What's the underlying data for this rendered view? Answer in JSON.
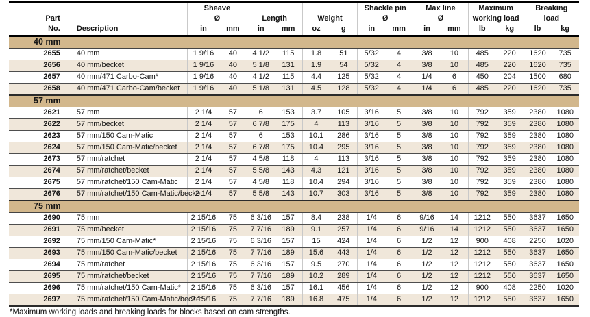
{
  "colors": {
    "section_band": "#d2b78c",
    "row_stripe": "#f0e7da",
    "text": "#161616",
    "rule_dark": "#4e4e4e",
    "rule_light": "#c9c9c9"
  },
  "header": {
    "part_line1": "Part",
    "part_line2": "No.",
    "description": "Description",
    "groups": [
      {
        "line1": "Sheave",
        "line2": "Ø",
        "units": [
          "in",
          "mm"
        ]
      },
      {
        "line1": "",
        "line2": "Length",
        "units": [
          "in",
          "mm"
        ]
      },
      {
        "line1": "",
        "line2": "Weight",
        "units": [
          "oz",
          "g"
        ]
      },
      {
        "line1": "Shackle pin",
        "line2": "Ø",
        "units": [
          "in",
          "mm"
        ]
      },
      {
        "line1": "Max line",
        "line2": "Ø",
        "units": [
          "in",
          "mm"
        ]
      },
      {
        "line1": "Maximum",
        "line2": "working load",
        "units": [
          "lb",
          "kg"
        ]
      },
      {
        "line1": "Breaking",
        "line2": "load",
        "units": [
          "lb",
          "kg"
        ]
      }
    ]
  },
  "sections": [
    {
      "title": "40 mm",
      "rows": [
        {
          "part": "2655",
          "description": "40 mm",
          "values": [
            "1 9/16",
            "40",
            "4 1/2",
            "115",
            "1.8",
            "51",
            "5/32",
            "4",
            "3/8",
            "10",
            "485",
            "220",
            "1620",
            "735"
          ]
        },
        {
          "part": "2656",
          "description": "40 mm/becket",
          "values": [
            "1 9/16",
            "40",
            "5 1/8",
            "131",
            "1.9",
            "54",
            "5/32",
            "4",
            "3/8",
            "10",
            "485",
            "220",
            "1620",
            "735"
          ]
        },
        {
          "part": "2657",
          "description": "40 mm/471 Carbo-Cam*",
          "values": [
            "1 9/16",
            "40",
            "4 1/2",
            "115",
            "4.4",
            "125",
            "5/32",
            "4",
            "1/4",
            "6",
            "450",
            "204",
            "1500",
            "680"
          ]
        },
        {
          "part": "2658",
          "description": "40 mm/471 Carbo-Cam/becket",
          "values": [
            "1 9/16",
            "40",
            "5 1/8",
            "131",
            "4.5",
            "128",
            "5/32",
            "4",
            "1/4",
            "6",
            "485",
            "220",
            "1620",
            "735"
          ]
        }
      ]
    },
    {
      "title": "57 mm",
      "rows": [
        {
          "part": "2621",
          "description": "57 mm",
          "values": [
            "2 1/4",
            "57",
            "6",
            "153",
            "3.7",
            "105",
            "3/16",
            "5",
            "3/8",
            "10",
            "792",
            "359",
            "2380",
            "1080"
          ]
        },
        {
          "part": "2622",
          "description": "57 mm/becket",
          "values": [
            "2 1/4",
            "57",
            "6 7/8",
            "175",
            "4",
            "113",
            "3/16",
            "5",
            "3/8",
            "10",
            "792",
            "359",
            "2380",
            "1080"
          ]
        },
        {
          "part": "2623",
          "description": "57 mm/150 Cam-Matic",
          "values": [
            "2 1/4",
            "57",
            "6",
            "153",
            "10.1",
            "286",
            "3/16",
            "5",
            "3/8",
            "10",
            "792",
            "359",
            "2380",
            "1080"
          ]
        },
        {
          "part": "2624",
          "description": "57 mm/150 Cam-Matic/becket",
          "values": [
            "2 1/4",
            "57",
            "6 7/8",
            "175",
            "10.4",
            "295",
            "3/16",
            "5",
            "3/8",
            "10",
            "792",
            "359",
            "2380",
            "1080"
          ]
        },
        {
          "part": "2673",
          "description": "57 mm/ratchet",
          "values": [
            "2 1/4",
            "57",
            "4 5/8",
            "118",
            "4",
            "113",
            "3/16",
            "5",
            "3/8",
            "10",
            "792",
            "359",
            "2380",
            "1080"
          ]
        },
        {
          "part": "2674",
          "description": "57 mm/ratchet/becket",
          "values": [
            "2 1/4",
            "57",
            "5 5/8",
            "143",
            "4.3",
            "121",
            "3/16",
            "5",
            "3/8",
            "10",
            "792",
            "359",
            "2380",
            "1080"
          ]
        },
        {
          "part": "2675",
          "description": "57 mm/ratchet/150 Cam-Matic",
          "values": [
            "2 1/4",
            "57",
            "4 5/8",
            "118",
            "10.4",
            "294",
            "3/16",
            "5",
            "3/8",
            "10",
            "792",
            "359",
            "2380",
            "1080"
          ]
        },
        {
          "part": "2676",
          "description": "57 mm/ratchet/150 Cam-Matic/becket",
          "values": [
            "2 1/4",
            "57",
            "5 5/8",
            "143",
            "10.7",
            "303",
            "3/16",
            "5",
            "3/8",
            "10",
            "792",
            "359",
            "2380",
            "1080"
          ]
        }
      ]
    },
    {
      "title": "75 mm",
      "rows": [
        {
          "part": "2690",
          "description": "75 mm",
          "values": [
            "2 15/16",
            "75",
            "6 3/16",
            "157",
            "8.4",
            "238",
            "1/4",
            "6",
            "9/16",
            "14",
            "1212",
            "550",
            "3637",
            "1650"
          ]
        },
        {
          "part": "2691",
          "description": "75 mm/becket",
          "values": [
            "2 15/16",
            "75",
            "7 7/16",
            "189",
            "9.1",
            "257",
            "1/4",
            "6",
            "9/16",
            "14",
            "1212",
            "550",
            "3637",
            "1650"
          ]
        },
        {
          "part": "2692",
          "description": "75 mm/150 Cam-Matic*",
          "values": [
            "2 15/16",
            "75",
            "6 3/16",
            "157",
            "15",
            "424",
            "1/4",
            "6",
            "1/2",
            "12",
            "900",
            "408",
            "2250",
            "1020"
          ]
        },
        {
          "part": "2693",
          "description": "75 mm/150 Cam-Matic/becket",
          "values": [
            "2 15/16",
            "75",
            "7 7/16",
            "189",
            "15.6",
            "443",
            "1/4",
            "6",
            "1/2",
            "12",
            "1212",
            "550",
            "3637",
            "1650"
          ]
        },
        {
          "part": "2694",
          "description": "75 mm/ratchet",
          "values": [
            "2 15/16",
            "75",
            "6 3/16",
            "157",
            "9.5",
            "270",
            "1/4",
            "6",
            "1/2",
            "12",
            "1212",
            "550",
            "3637",
            "1650"
          ]
        },
        {
          "part": "2695",
          "description": "75 mm/ratchet/becket",
          "values": [
            "2 15/16",
            "75",
            "7 7/16",
            "189",
            "10.2",
            "289",
            "1/4",
            "6",
            "1/2",
            "12",
            "1212",
            "550",
            "3637",
            "1650"
          ]
        },
        {
          "part": "2696",
          "description": "75 mm/ratchet/150 Cam-Matic*",
          "values": [
            "2 15/16",
            "75",
            "6 3/16",
            "157",
            "16.1",
            "456",
            "1/4",
            "6",
            "1/2",
            "12",
            "900",
            "408",
            "2250",
            "1020"
          ]
        },
        {
          "part": "2697",
          "description": "75 mm/ratchet/150 Cam-Matic/becket",
          "values": [
            "2 15/16",
            "75",
            "7 7/16",
            "189",
            "16.8",
            "475",
            "1/4",
            "6",
            "1/2",
            "12",
            "1212",
            "550",
            "3637",
            "1650"
          ]
        }
      ]
    }
  ],
  "footnote": "*Maximum working loads and breaking loads for blocks based on cam strengths."
}
